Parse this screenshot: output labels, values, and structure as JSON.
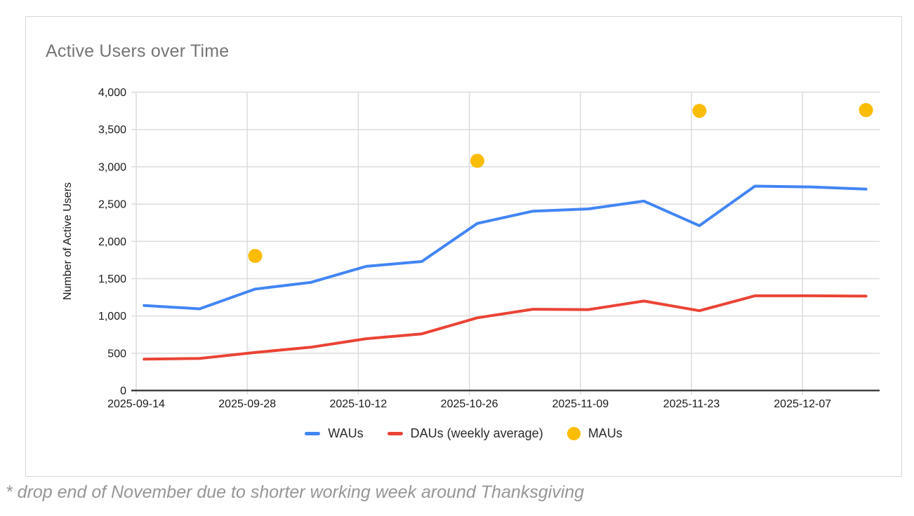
{
  "chart": {
    "title": "Active Users over Time",
    "y_axis_title": "Number of Active Users",
    "footnote": "* drop end of November due to shorter working week around Thanksgiving"
  },
  "chart_data": {
    "type": "line",
    "title": "Active Users over Time",
    "xlabel": "",
    "ylabel": "Number of Active Users",
    "ylim": [
      0,
      4000
    ],
    "grid": true,
    "legend_position": "bottom",
    "y_ticks": [
      0,
      500,
      1000,
      1500,
      2000,
      2500,
      3000,
      3500,
      4000
    ],
    "y_tick_labels": [
      "0",
      "500",
      "1,000",
      "1,500",
      "2,000",
      "2,500",
      "3,000",
      "3,500",
      "4,000"
    ],
    "x_tick_labels": [
      "2025-09-14",
      "2025-09-28",
      "2025-10-12",
      "2025-10-26",
      "2025-11-09",
      "2025-11-23",
      "2025-12-07"
    ],
    "x_range": [
      "2025-09-14",
      "2025-12-17"
    ],
    "x": [
      "2025-09-15",
      "2025-09-22",
      "2025-09-29",
      "2025-10-06",
      "2025-10-13",
      "2025-10-20",
      "2025-10-27",
      "2025-11-03",
      "2025-11-10",
      "2025-11-17",
      "2025-11-24",
      "2025-12-01",
      "2025-12-08",
      "2025-12-15"
    ],
    "series": [
      {
        "name": "WAUs",
        "type": "line",
        "color": "#4285F4",
        "values": [
          1140,
          1095,
          1360,
          1450,
          1665,
          1730,
          2240,
          2405,
          2435,
          2540,
          2210,
          2740,
          2730,
          2700
        ]
      },
      {
        "name": "DAUs (weekly average)",
        "type": "line",
        "color": "#EA4335",
        "values": [
          420,
          430,
          510,
          580,
          695,
          760,
          975,
          1090,
          1085,
          1200,
          1070,
          1270,
          1270,
          1265
        ]
      },
      {
        "name": "MAUs",
        "type": "scatter",
        "color": "#FBBC04",
        "x": [
          "2025-09-29",
          "2025-10-27",
          "2025-11-24",
          "2025-12-15"
        ],
        "values": [
          1805,
          3080,
          3750,
          3760
        ]
      }
    ]
  },
  "colors": {
    "gridline": "#dcdcdc",
    "axis_line": "#424242",
    "tick_label": "#1a1a1a",
    "title": "#757575",
    "footnote": "#969696",
    "card_border": "#d7d7d7"
  }
}
